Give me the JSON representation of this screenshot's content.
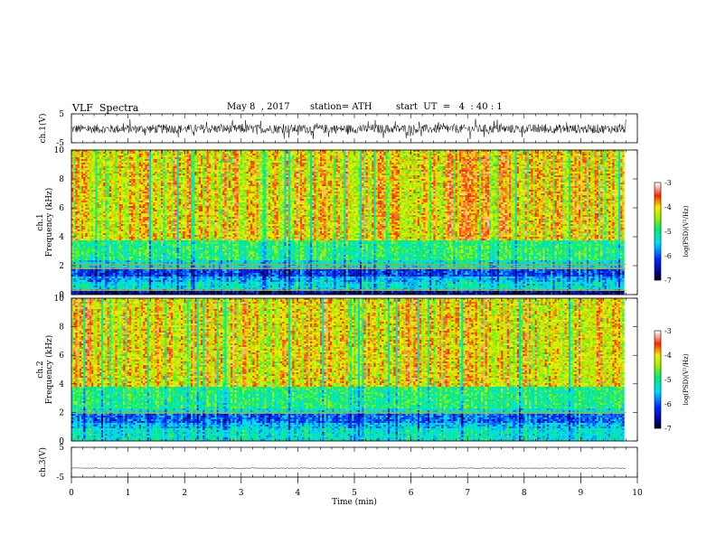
{
  "header": {
    "title": "VLF  Spectra",
    "date": "May 8  , 2017",
    "station": "station= ATH",
    "start_ut": "start  UT  =   4  : 40 : 1"
  },
  "chart_data": [
    {
      "type": "line",
      "name": "ch1-voltage",
      "ylabel": "ch.1(V)",
      "yticks": [
        "5",
        "-5"
      ],
      "ylim": [
        -5,
        5
      ],
      "xlim": [
        0,
        10
      ],
      "data_extent_min": 9.8,
      "series": [
        {
          "color": "#000000",
          "baseline": -0.2,
          "noise_amplitude": 2.2
        }
      ]
    },
    {
      "type": "heatmap",
      "name": "ch1-spectrogram",
      "ylabel": "ch.1",
      "ylabel2": "Frequency  (kHz)",
      "yticks": [
        "10",
        "8",
        "6",
        "4",
        "2",
        "0"
      ],
      "ylim": [
        0,
        10
      ],
      "xlim": [
        0,
        10
      ],
      "data_extent_min": 9.8,
      "colorbar": {
        "label": "log(PSD)(V²/Hz)",
        "ticks": [
          "-3",
          "-4",
          "-5",
          "-6",
          "-7"
        ],
        "range": [
          -7,
          -3
        ]
      },
      "bands_khz": [
        {
          "from": 0,
          "to": 0.35,
          "level": -6.6
        },
        {
          "from": 0.35,
          "to": 0.9,
          "level": -5.3
        },
        {
          "from": 0.9,
          "to": 1.3,
          "level": -5.6
        },
        {
          "from": 1.3,
          "to": 1.8,
          "level": -6.1
        },
        {
          "from": 1.8,
          "to": 2.4,
          "level": -5.3
        },
        {
          "from": 2.4,
          "to": 3.8,
          "level": -4.9
        },
        {
          "from": 3.8,
          "to": 10,
          "level": -4.0
        }
      ],
      "lines_khz": [
        0.3,
        1.8,
        2.1
      ]
    },
    {
      "type": "heatmap",
      "name": "ch2-spectrogram",
      "ylabel": "ch.2",
      "ylabel2": "Frequency  (kHz)",
      "yticks": [
        "10",
        "8",
        "6",
        "4",
        "2",
        "0"
      ],
      "ylim": [
        0,
        10
      ],
      "xlim": [
        0,
        10
      ],
      "data_extent_min": 9.8,
      "colorbar": {
        "label": "log(PSD)(V²/Hz)",
        "ticks": [
          "-3",
          "-4",
          "-5",
          "-6",
          "-7"
        ],
        "range": [
          -7,
          -3
        ]
      },
      "bands_khz": [
        {
          "from": 0,
          "to": 0.9,
          "level": -5.2
        },
        {
          "from": 0.9,
          "to": 1.3,
          "level": -5.5
        },
        {
          "from": 1.3,
          "to": 1.9,
          "level": -5.9
        },
        {
          "from": 1.9,
          "to": 2.4,
          "level": -5.2
        },
        {
          "from": 2.4,
          "to": 3.8,
          "level": -4.9
        },
        {
          "from": 3.8,
          "to": 10,
          "level": -4.0
        }
      ],
      "lines_khz": [
        2.0
      ]
    },
    {
      "type": "line",
      "name": "ch3-voltage",
      "ylabel": "ch.3(V)",
      "yticks": [
        "5",
        "-5"
      ],
      "ylim": [
        -5,
        5
      ],
      "xlim": [
        0,
        10
      ],
      "data_extent_min": 9.8,
      "series": [
        {
          "color": "#000000",
          "baseline": -2.0,
          "noise_amplitude": 0.15
        }
      ]
    }
  ],
  "x_axis": {
    "label": "Time  (min)",
    "ticks": [
      "0",
      "1",
      "2",
      "3",
      "4",
      "5",
      "6",
      "7",
      "8",
      "9",
      "10"
    ]
  }
}
